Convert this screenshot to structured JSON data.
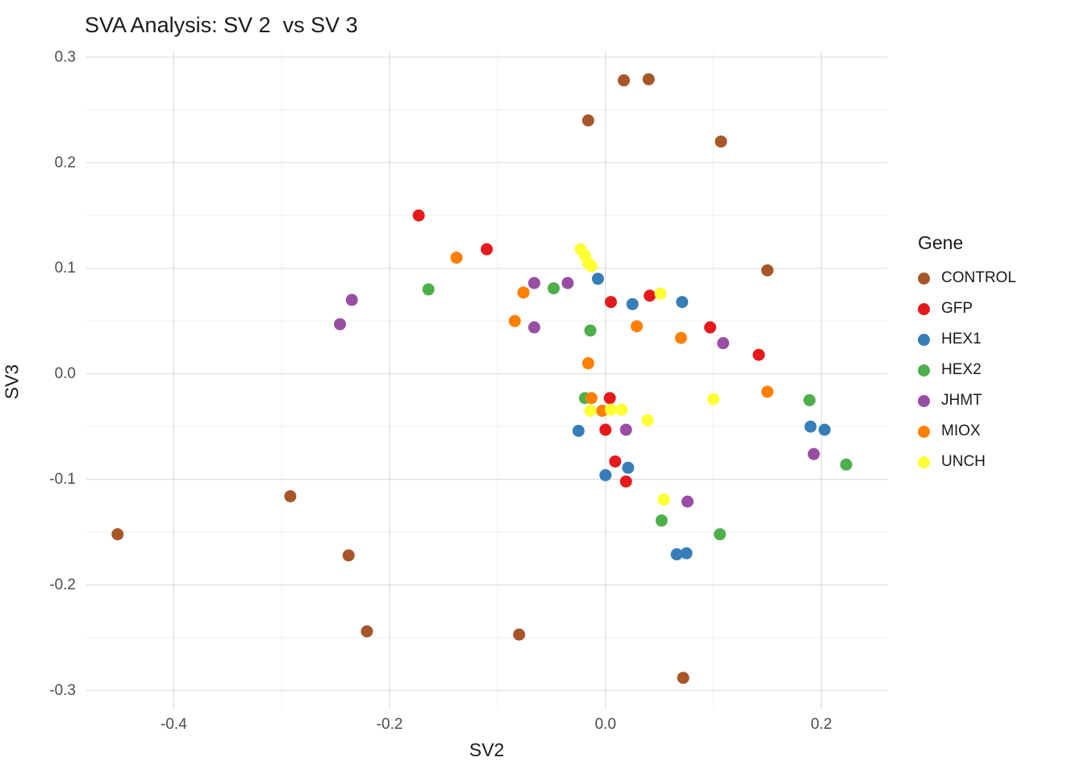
{
  "title": "SVA Analysis: SV 2  vs SV 3",
  "chart_data": {
    "type": "scatter",
    "title": "SVA Analysis: SV 2  vs SV 3",
    "xlabel": "SV2",
    "ylabel": "SV3",
    "xlim": [
      -0.481,
      0.261
    ],
    "ylim": [
      -0.318,
      0.306
    ],
    "x_ticks": [
      -0.4,
      -0.2,
      0.0,
      0.2
    ],
    "x_tick_labels": [
      "-0.4",
      "-0.2",
      "0.0",
      "0.2"
    ],
    "y_ticks": [
      -0.3,
      -0.2,
      -0.1,
      0.0,
      0.1,
      0.2,
      0.3
    ],
    "y_tick_labels": [
      "-0.3",
      "-0.2",
      "-0.1",
      "0.0",
      "0.1",
      "0.2",
      "0.3"
    ],
    "x_minor_ticks": [
      -0.3,
      -0.1,
      0.1
    ],
    "y_minor_ticks": [
      -0.25,
      -0.15,
      -0.05,
      0.05,
      0.15,
      0.25
    ],
    "grid": true,
    "legend_position": "right",
    "legend_title": "Gene",
    "point_radius": 7.5,
    "colors": {
      "major_grid": "#e0e0e0",
      "minor_grid": "#efefef",
      "tick_text": "#4d4d4d",
      "title_text": "#1a1a1a"
    },
    "series": [
      {
        "name": "CONTROL",
        "color": "#A65628",
        "points": [
          [
            0.017,
            0.278
          ],
          [
            0.04,
            0.279
          ],
          [
            -0.016,
            0.24
          ],
          [
            0.107,
            0.22
          ],
          [
            0.15,
            0.098
          ],
          [
            -0.292,
            -0.116
          ],
          [
            -0.452,
            -0.152
          ],
          [
            -0.238,
            -0.172
          ],
          [
            -0.221,
            -0.244
          ],
          [
            -0.08,
            -0.247
          ],
          [
            0.072,
            -0.288
          ]
        ]
      },
      {
        "name": "GFP",
        "color": "#E41A1C",
        "points": [
          [
            -0.173,
            0.15
          ],
          [
            -0.11,
            0.118
          ],
          [
            0.005,
            0.068
          ],
          [
            0.041,
            0.074
          ],
          [
            0.097,
            0.044
          ],
          [
            0.142,
            0.018
          ],
          [
            0.004,
            -0.023
          ],
          [
            0.0,
            -0.053
          ],
          [
            0.009,
            -0.083
          ],
          [
            0.019,
            -0.102
          ]
        ]
      },
      {
        "name": "HEX1",
        "color": "#377EB8",
        "points": [
          [
            -0.007,
            0.09
          ],
          [
            0.025,
            0.066
          ],
          [
            0.071,
            0.068
          ],
          [
            -0.025,
            -0.054
          ],
          [
            0.19,
            -0.05
          ],
          [
            0.203,
            -0.053
          ],
          [
            0.0,
            -0.096
          ],
          [
            0.021,
            -0.089
          ],
          [
            0.066,
            -0.171
          ],
          [
            0.075,
            -0.17
          ]
        ]
      },
      {
        "name": "HEX2",
        "color": "#4DAF4A",
        "points": [
          [
            -0.164,
            0.08
          ],
          [
            -0.048,
            0.081
          ],
          [
            -0.014,
            0.041
          ],
          [
            -0.019,
            -0.023
          ],
          [
            0.189,
            -0.025
          ],
          [
            0.223,
            -0.086
          ],
          [
            0.052,
            -0.139
          ],
          [
            0.106,
            -0.152
          ]
        ]
      },
      {
        "name": "JHMT",
        "color": "#984EA3",
        "points": [
          [
            -0.235,
            0.07
          ],
          [
            -0.246,
            0.047
          ],
          [
            -0.066,
            0.086
          ],
          [
            -0.035,
            0.086
          ],
          [
            -0.066,
            0.044
          ],
          [
            0.109,
            0.029
          ],
          [
            0.019,
            -0.053
          ],
          [
            0.193,
            -0.076
          ],
          [
            0.076,
            -0.121
          ]
        ]
      },
      {
        "name": "MIOX",
        "color": "#FF7F00",
        "points": [
          [
            -0.138,
            0.11
          ],
          [
            -0.076,
            0.077
          ],
          [
            -0.084,
            0.05
          ],
          [
            0.029,
            0.045
          ],
          [
            0.07,
            0.034
          ],
          [
            -0.016,
            0.01
          ],
          [
            0.15,
            -0.017
          ],
          [
            -0.013,
            -0.023
          ],
          [
            -0.003,
            -0.035
          ]
        ]
      },
      {
        "name": "UNCH",
        "color": "#FFFF33",
        "points": [
          [
            -0.023,
            0.118
          ],
          [
            -0.019,
            0.112
          ],
          [
            -0.016,
            0.105
          ],
          [
            -0.013,
            0.102
          ],
          [
            0.051,
            0.076
          ],
          [
            0.1,
            -0.024
          ],
          [
            -0.014,
            -0.035
          ],
          [
            0.005,
            -0.034
          ],
          [
            0.015,
            -0.034
          ],
          [
            0.039,
            -0.044
          ],
          [
            0.054,
            -0.119
          ]
        ]
      }
    ]
  }
}
